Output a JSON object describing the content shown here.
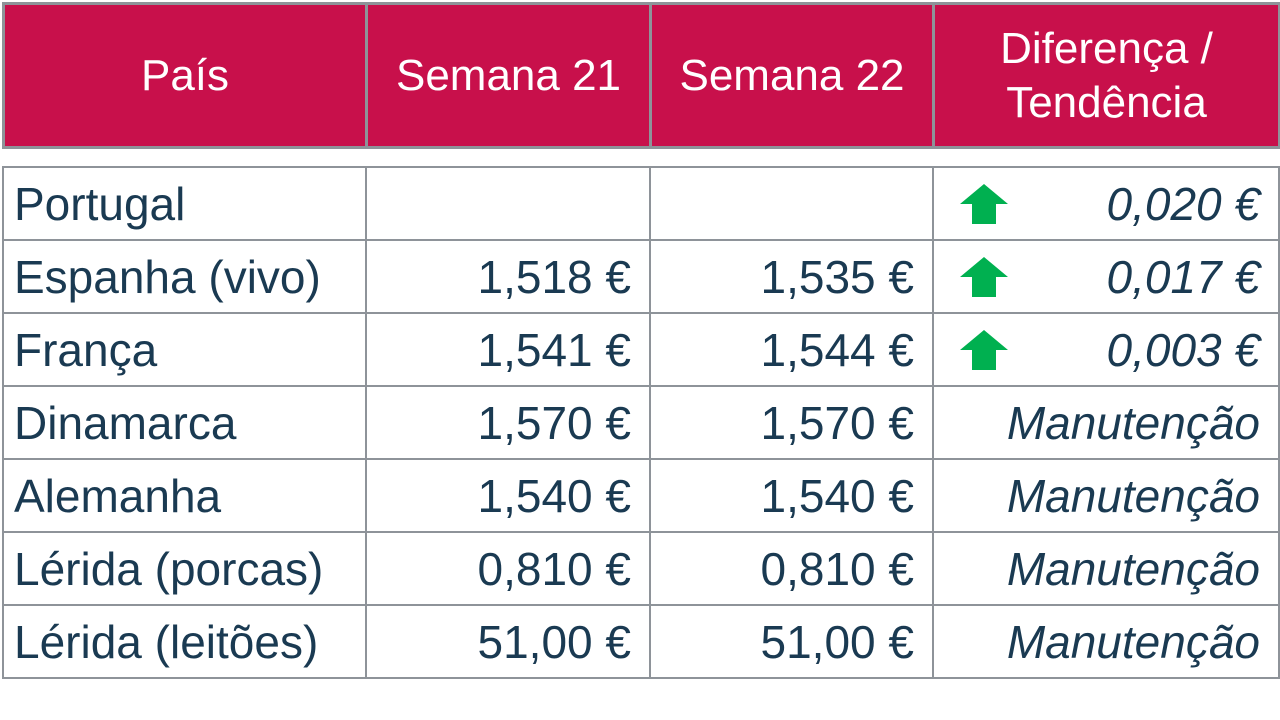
{
  "header": {
    "col_country": "País",
    "col_week21": "Semana 21",
    "col_week22": "Semana 22",
    "col_diff_line1": "Diferença /",
    "col_diff_line2": "Tendência"
  },
  "rows": [
    {
      "country": "Portugal",
      "week21": "",
      "week22": "",
      "diff": "0,020 €",
      "trend": "up"
    },
    {
      "country": "Espanha (vivo)",
      "week21": "1,518 €",
      "week22": "1,535 €",
      "diff": "0,017 €",
      "trend": "up"
    },
    {
      "country": "França",
      "week21": "1,541 €",
      "week22": "1,544 €",
      "diff": "0,003 €",
      "trend": "up"
    },
    {
      "country": "Dinamarca",
      "week21": "1,570 €",
      "week22": "1,570 €",
      "diff": "Manutenção",
      "trend": "none"
    },
    {
      "country": "Alemanha",
      "week21": "1,540 €",
      "week22": "1,540 €",
      "diff": "Manutenção",
      "trend": "none"
    },
    {
      "country": "Lérida (porcas)",
      "week21": "0,810 €",
      "week22": "0,810 €",
      "diff": "Manutenção",
      "trend": "none"
    },
    {
      "country": "Lérida (leitões)",
      "week21": "51,00 €",
      "week22": "51,00 €",
      "diff": "Manutenção",
      "trend": "none"
    }
  ],
  "colors": {
    "header_bg": "#c8104b",
    "header_text": "#ffffff",
    "body_text": "#1a3a52",
    "arrow_up": "#00b050",
    "border": "#8e9399"
  },
  "icons": {
    "trend_up": "arrow-up-icon"
  }
}
